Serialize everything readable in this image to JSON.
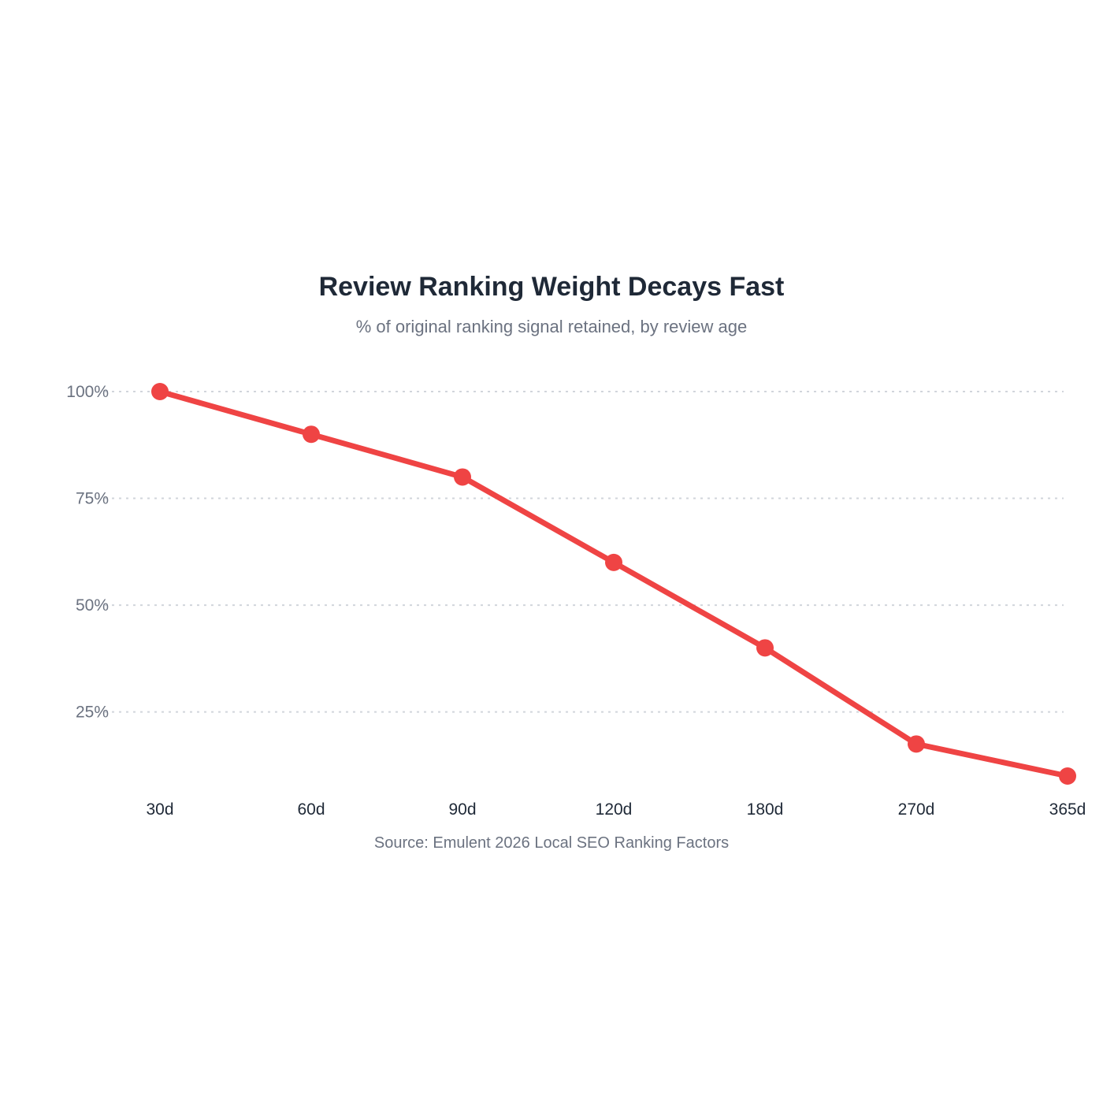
{
  "chart_data": {
    "type": "line",
    "title": "Review Ranking Weight Decays Fast",
    "subtitle": "% of original ranking signal retained, by review age",
    "source": "Source: Emulent 2026 Local SEO Ranking Factors",
    "categories": [
      "30d",
      "60d",
      "90d",
      "120d",
      "180d",
      "270d",
      "365d"
    ],
    "series": [
      {
        "values": [
          100,
          90,
          80,
          60,
          40,
          17.5,
          10
        ],
        "color": "#ef4444"
      }
    ],
    "y_ticks": [
      {
        "value": 100,
        "label": "100%"
      },
      {
        "value": 75,
        "label": "75%"
      },
      {
        "value": 50,
        "label": "50%"
      },
      {
        "value": 25,
        "label": "25%"
      }
    ],
    "ylim": [
      10,
      100
    ],
    "grid": "horizontal-dotted",
    "gridColor": "#d1d5db",
    "legend": "none"
  }
}
